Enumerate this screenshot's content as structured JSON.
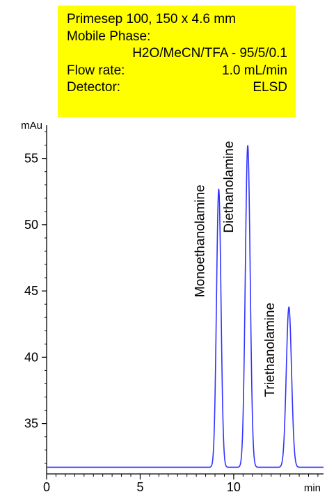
{
  "info_box": {
    "column": "Primesep 100, 150 x 4.6 mm",
    "mobile_phase_label": "Mobile Phase:",
    "mobile_phase_value": "H2O/MeCN/TFA - 95/5/0.1",
    "flow_rate_label": "Flow rate:",
    "flow_rate_value": "1.0 mL/min",
    "detector_label": "Detector:",
    "detector_value": "ELSD"
  },
  "colors": {
    "trace": "#3333ff",
    "info_box_background": "#ffff00",
    "axis": "#000000"
  },
  "chart_data": {
    "type": "line",
    "title": "",
    "xlabel": "min",
    "ylabel": "mAu",
    "xlim": [
      0,
      14.8
    ],
    "ylim": [
      31.2,
      57.5
    ],
    "x_ticks": [
      0,
      5,
      10
    ],
    "x_tick_labels": [
      "0",
      "5",
      "10"
    ],
    "y_ticks": [
      35,
      40,
      45,
      50,
      55
    ],
    "y_tick_labels": [
      "35",
      "40",
      "45",
      "50",
      "55"
    ],
    "baseline": 31.7,
    "peaks": [
      {
        "label": "Monoethanolamine",
        "retention_time": 9.2,
        "height": 52.7,
        "width_min": 0.12
      },
      {
        "label": "Diethanolamine",
        "retention_time": 10.75,
        "height": 56.0,
        "width_min": 0.13
      },
      {
        "label": "Triethanolamine",
        "retention_time": 12.95,
        "height": 43.8,
        "width_min": 0.14
      }
    ],
    "grid": false,
    "legend": "none"
  }
}
